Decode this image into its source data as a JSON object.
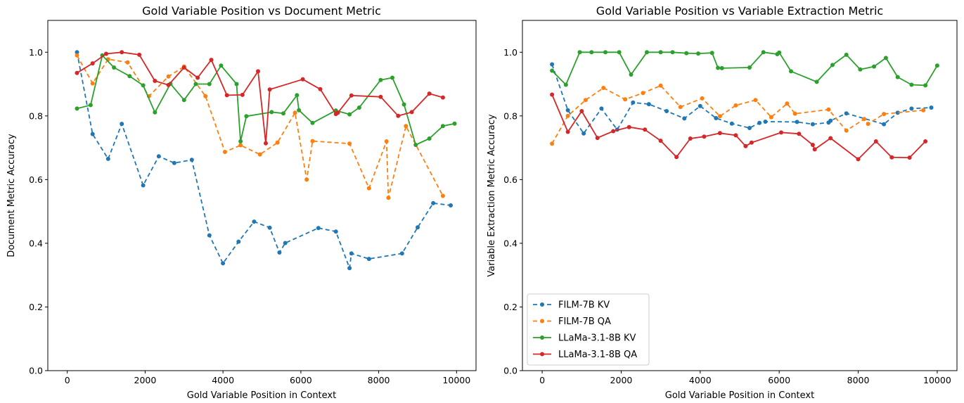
{
  "chart_data": [
    {
      "type": "line",
      "title": "Gold Variable Position vs Document Metric",
      "xlabel": "Gold Variable Position in Context",
      "ylabel": "Document Metric Accuracy",
      "xlim": [
        -500,
        10500
      ],
      "ylim": [
        0.0,
        1.1
      ],
      "xticks": [
        0,
        2000,
        4000,
        6000,
        8000,
        10000
      ],
      "yticks": [
        0.0,
        0.2,
        0.4,
        0.6,
        0.8,
        1.0
      ],
      "legend": false,
      "series": [
        {
          "name": "FILM-7B KV",
          "color": "#1f77b4",
          "dashed": true,
          "x": [
            250,
            650,
            1050,
            1400,
            1950,
            2350,
            2750,
            3200,
            3650,
            4000,
            4400,
            4800,
            5200,
            5450,
            5600,
            6450,
            6900,
            7250,
            7300,
            7750,
            8600,
            9000,
            9400,
            9850
          ],
          "y": [
            1.0,
            0.743,
            0.665,
            0.775,
            0.582,
            0.673,
            0.652,
            0.662,
            0.425,
            0.337,
            0.405,
            0.468,
            0.449,
            0.371,
            0.401,
            0.448,
            0.437,
            0.322,
            0.368,
            0.351,
            0.368,
            0.45,
            0.526,
            0.519
          ]
        },
        {
          "name": "FILM-7B QA",
          "color": "#ff7f0e",
          "dashed": true,
          "x": [
            250,
            650,
            1050,
            1550,
            2100,
            2600,
            3000,
            3550,
            4050,
            4450,
            4950,
            5400,
            5850,
            6150,
            6300,
            7250,
            7750,
            8200,
            8250,
            8700,
            9650
          ],
          "y": [
            0.99,
            0.902,
            0.978,
            0.968,
            0.862,
            0.924,
            0.955,
            0.862,
            0.687,
            0.708,
            0.679,
            0.716,
            0.81,
            0.6,
            0.721,
            0.713,
            0.573,
            0.72,
            0.543,
            0.768,
            0.549
          ]
        },
        {
          "name": "LLaMa-3.1-8B KV",
          "color": "#2ca02c",
          "dashed": false,
          "x": [
            250,
            600,
            900,
            1200,
            1600,
            1950,
            2250,
            2650,
            3000,
            3300,
            3650,
            3950,
            4350,
            4450,
            4600,
            5250,
            5550,
            5900,
            5950,
            6300,
            6900,
            7250,
            7500,
            8050,
            8350,
            8650,
            8950,
            9300,
            9650,
            9950
          ],
          "y": [
            0.823,
            0.834,
            0.99,
            0.952,
            0.925,
            0.896,
            0.811,
            0.901,
            0.85,
            0.9,
            0.9,
            0.958,
            0.9,
            0.72,
            0.799,
            0.812,
            0.808,
            0.865,
            0.818,
            0.778,
            0.817,
            0.805,
            0.826,
            0.913,
            0.92,
            0.836,
            0.709,
            0.729,
            0.768,
            0.776
          ]
        },
        {
          "name": "LLaMa-3.1-8B QA",
          "color": "#d62728",
          "dashed": false,
          "x": [
            250,
            650,
            1000,
            1400,
            1850,
            2250,
            2600,
            3000,
            3350,
            3700,
            4100,
            4500,
            4900,
            5100,
            5200,
            6050,
            6500,
            6900,
            6950,
            7300,
            8050,
            8500,
            8850,
            9300,
            9650
          ],
          "y": [
            0.935,
            0.965,
            0.995,
            1.0,
            0.992,
            0.91,
            0.897,
            0.952,
            0.92,
            0.976,
            0.865,
            0.866,
            0.94,
            0.714,
            0.883,
            0.915,
            0.884,
            0.806,
            0.81,
            0.864,
            0.86,
            0.8,
            0.812,
            0.87,
            0.858
          ]
        }
      ]
    },
    {
      "type": "line",
      "title": "Gold Variable Position vs Variable Extraction Metric",
      "xlabel": "Gold Variable Position in Context",
      "ylabel": "Variable Extraction Metric Accuracy",
      "xlim": [
        -500,
        10500
      ],
      "ylim": [
        0.0,
        1.1
      ],
      "xticks": [
        0,
        2000,
        4000,
        6000,
        8000,
        10000
      ],
      "yticks": [
        0.0,
        0.2,
        0.4,
        0.6,
        0.8,
        1.0
      ],
      "legend": "lower-left",
      "series": [
        {
          "name": "FILM-7B KV",
          "color": "#1f77b4",
          "dashed": true,
          "x": [
            250,
            650,
            1050,
            1500,
            1900,
            2300,
            2700,
            3150,
            3600,
            4000,
            4400,
            4800,
            5250,
            5500,
            5650,
            6450,
            6850,
            7250,
            7300,
            7700,
            8650,
            9000,
            9350,
            9850
          ],
          "y": [
            0.962,
            0.818,
            0.745,
            0.823,
            0.757,
            0.842,
            0.837,
            0.815,
            0.792,
            0.831,
            0.793,
            0.776,
            0.762,
            0.778,
            0.782,
            0.781,
            0.774,
            0.779,
            0.785,
            0.808,
            0.774,
            0.81,
            0.823,
            0.826
          ]
        },
        {
          "name": "FILM-7B QA",
          "color": "#ff7f0e",
          "dashed": true,
          "x": [
            250,
            650,
            1100,
            1550,
            2100,
            2550,
            3000,
            3500,
            4050,
            4500,
            4900,
            5400,
            5800,
            6200,
            6400,
            7250,
            7700,
            8150,
            8250,
            8650,
            9650
          ],
          "y": [
            0.713,
            0.8,
            0.85,
            0.888,
            0.852,
            0.872,
            0.895,
            0.828,
            0.855,
            0.799,
            0.833,
            0.85,
            0.796,
            0.839,
            0.807,
            0.82,
            0.754,
            0.79,
            0.775,
            0.806,
            0.818
          ]
        },
        {
          "name": "LLaMa-3.1-8B KV",
          "color": "#2ca02c",
          "dashed": false,
          "x": [
            250,
            600,
            950,
            1250,
            1600,
            1950,
            2250,
            2650,
            3000,
            3300,
            3650,
            3950,
            4300,
            4450,
            4550,
            5250,
            5600,
            5950,
            6000,
            6300,
            6950,
            7350,
            7700,
            8050,
            8400,
            8700,
            9000,
            9350,
            9700,
            10000
          ],
          "y": [
            0.942,
            0.898,
            1.0,
            1.0,
            1.0,
            1.0,
            0.93,
            1.0,
            1.0,
            1.0,
            0.997,
            0.996,
            0.998,
            0.951,
            0.95,
            0.952,
            1.0,
            0.994,
            0.999,
            0.94,
            0.907,
            0.96,
            0.992,
            0.946,
            0.955,
            0.982,
            0.922,
            0.898,
            0.896,
            0.958
          ]
        },
        {
          "name": "LLaMa-3.1-8B QA",
          "color": "#d62728",
          "dashed": false,
          "x": [
            250,
            650,
            1000,
            1400,
            1800,
            2200,
            2600,
            3000,
            3400,
            3750,
            4100,
            4500,
            4900,
            5150,
            5300,
            6050,
            6500,
            6850,
            6900,
            7300,
            8000,
            8450,
            8850,
            9300,
            9700
          ],
          "y": [
            0.867,
            0.75,
            0.815,
            0.731,
            0.752,
            0.765,
            0.757,
            0.722,
            0.671,
            0.729,
            0.735,
            0.746,
            0.739,
            0.705,
            0.716,
            0.748,
            0.744,
            0.709,
            0.695,
            0.73,
            0.664,
            0.72,
            0.67,
            0.669,
            0.72
          ]
        }
      ]
    }
  ]
}
